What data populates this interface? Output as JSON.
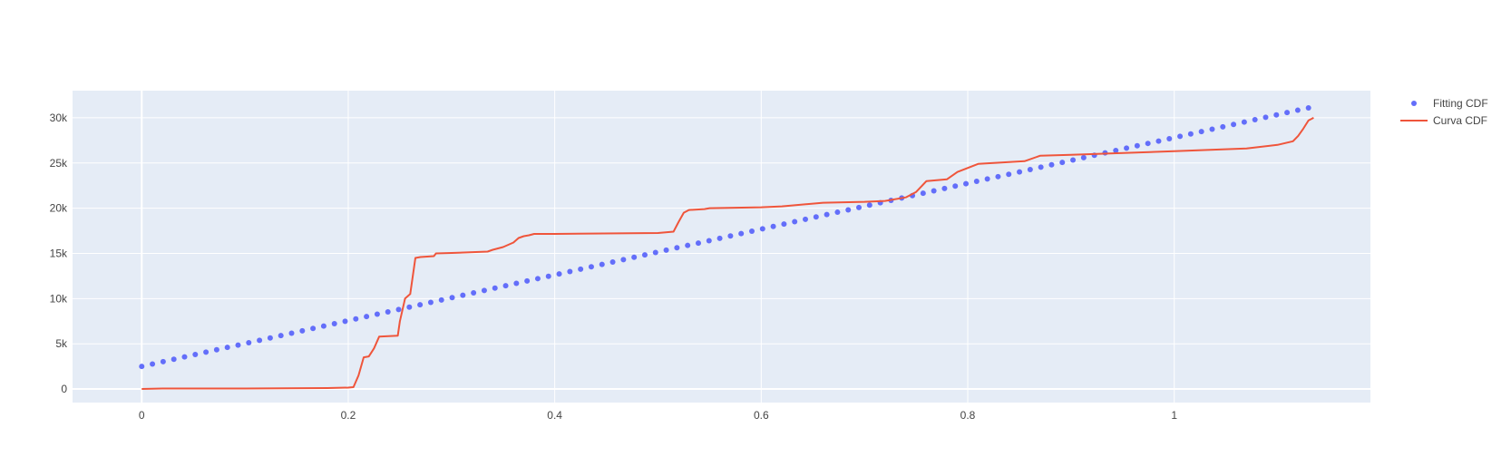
{
  "chart_data": {
    "type": "scatter",
    "title": "",
    "xlabel": "",
    "ylabel": "",
    "xlim": [
      -0.067,
      1.19
    ],
    "ylim": [
      -1500,
      33000
    ],
    "xticks": [
      0,
      0.2,
      0.4,
      0.6,
      0.8,
      1
    ],
    "xtick_labels": [
      "0",
      "0.2",
      "0.4",
      "0.6",
      "0.8",
      "1"
    ],
    "yticks": [
      0,
      5000,
      10000,
      15000,
      20000,
      25000,
      30000
    ],
    "ytick_labels": [
      "0",
      "5k",
      "10k",
      "15k",
      "20k",
      "25k",
      "30k"
    ],
    "grid": true,
    "legend": "top-right-outside",
    "colors": {
      "plot_bg": "#e5ecf6",
      "grid": "#ffffff",
      "fit": "#636efa",
      "curve": "#ef553b"
    },
    "series": [
      {
        "name": "Fitting CDF",
        "mode": "markers",
        "color": "#636efa",
        "x_start": 0,
        "x_end": 1.13,
        "y_start": 2500,
        "y_end": 31100,
        "n_points": 110
      },
      {
        "name": "Curva CDF",
        "mode": "lines",
        "color": "#ef553b",
        "x": [
          0,
          0.02,
          0.1,
          0.18,
          0.2,
          0.205,
          0.21,
          0.215,
          0.22,
          0.225,
          0.23,
          0.248,
          0.25,
          0.255,
          0.26,
          0.265,
          0.27,
          0.283,
          0.285,
          0.3,
          0.335,
          0.34,
          0.35,
          0.36,
          0.365,
          0.37,
          0.375,
          0.38,
          0.4,
          0.5,
          0.515,
          0.52,
          0.525,
          0.53,
          0.545,
          0.55,
          0.6,
          0.62,
          0.66,
          0.7,
          0.72,
          0.74,
          0.75,
          0.76,
          0.78,
          0.79,
          0.81,
          0.855,
          0.87,
          0.9,
          1.0,
          1.07,
          1.1,
          1.115,
          1.12,
          1.125,
          1.13,
          1.135
        ],
        "y": [
          0,
          50,
          50,
          100,
          150,
          200,
          1500,
          3500,
          3600,
          4500,
          5800,
          5900,
          7500,
          10000,
          10500,
          14500,
          14600,
          14700,
          15000,
          15050,
          15200,
          15400,
          15700,
          16200,
          16700,
          16900,
          17000,
          17150,
          17150,
          17250,
          17400,
          18500,
          19500,
          19800,
          19900,
          20000,
          20100,
          20200,
          20600,
          20700,
          20800,
          21200,
          21800,
          23000,
          23200,
          24000,
          24900,
          25200,
          25800,
          25900,
          26300,
          26600,
          27000,
          27400,
          28000,
          28800,
          29700,
          30000
        ]
      }
    ]
  }
}
